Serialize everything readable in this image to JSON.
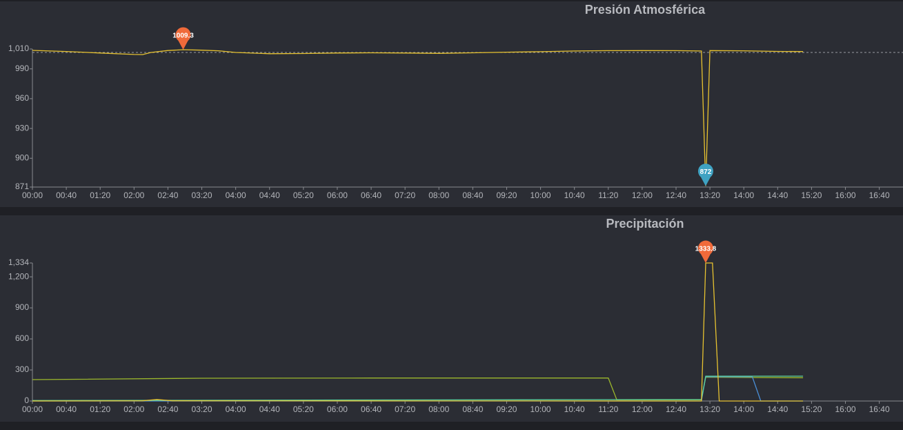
{
  "chart_data": [
    {
      "type": "line",
      "title": "Presión Atmosférica",
      "xlim": [
        0,
        1028
      ],
      "xticks": [
        {
          "value": 0,
          "label": "00:00"
        },
        {
          "value": 40,
          "label": "00:40"
        },
        {
          "value": 80,
          "label": "01:20"
        },
        {
          "value": 120,
          "label": "02:00"
        },
        {
          "value": 160,
          "label": "02:40"
        },
        {
          "value": 200,
          "label": "03:20"
        },
        {
          "value": 240,
          "label": "04:00"
        },
        {
          "value": 280,
          "label": "04:40"
        },
        {
          "value": 320,
          "label": "05:20"
        },
        {
          "value": 360,
          "label": "06:00"
        },
        {
          "value": 400,
          "label": "06:40"
        },
        {
          "value": 440,
          "label": "07:20"
        },
        {
          "value": 480,
          "label": "08:00"
        },
        {
          "value": 520,
          "label": "08:40"
        },
        {
          "value": 560,
          "label": "09:20"
        },
        {
          "value": 600,
          "label": "10:00"
        },
        {
          "value": 640,
          "label": "10:40"
        },
        {
          "value": 680,
          "label": "11:20"
        },
        {
          "value": 720,
          "label": "12:00"
        },
        {
          "value": 760,
          "label": "12:40"
        },
        {
          "value": 800,
          "label": "13:20"
        },
        {
          "value": 840,
          "label": "14:00"
        },
        {
          "value": 880,
          "label": "14:40"
        },
        {
          "value": 920,
          "label": "15:20"
        },
        {
          "value": 960,
          "label": "16:00"
        },
        {
          "value": 1000,
          "label": "16:40"
        }
      ],
      "ylim": [
        871,
        1010
      ],
      "yticks": [
        871,
        900,
        930,
        960,
        990,
        {
          "value": 1010,
          "label": "1,010"
        }
      ],
      "grid": false,
      "average_line": 1006.5,
      "series": [
        {
          "color": "#e8c330",
          "x": [
            0,
            40,
            80,
            120,
            130,
            140,
            160,
            178,
            200,
            220,
            240,
            280,
            320,
            360,
            400,
            440,
            480,
            520,
            560,
            600,
            640,
            680,
            720,
            760,
            790,
            795,
            800,
            840,
            880,
            910
          ],
          "values": [
            1008.6,
            1007.5,
            1006,
            1004.5,
            1004.4,
            1006.5,
            1008.5,
            1009.3,
            1008.8,
            1008.2,
            1006.5,
            1005.3,
            1005.5,
            1006,
            1006.2,
            1006,
            1005.6,
            1006.2,
            1006.8,
            1007.3,
            1008,
            1008.3,
            1008.4,
            1008.3,
            1008,
            872,
            1008.4,
            1008.2,
            1007.6,
            1007.4
          ]
        }
      ],
      "markers": [
        {
          "x": 178,
          "value": 1009.3,
          "color": "#f06a3a"
        },
        {
          "x": 795,
          "value": 872,
          "color": "#3fa2c2"
        }
      ]
    },
    {
      "type": "line",
      "title": "Precipitación",
      "xlim": [
        0,
        1028
      ],
      "xticks": [
        {
          "value": 0,
          "label": "00:00"
        },
        {
          "value": 40,
          "label": "00:40"
        },
        {
          "value": 80,
          "label": "01:20"
        },
        {
          "value": 120,
          "label": "02:00"
        },
        {
          "value": 160,
          "label": "02:40"
        },
        {
          "value": 200,
          "label": "03:20"
        },
        {
          "value": 240,
          "label": "04:00"
        },
        {
          "value": 280,
          "label": "04:40"
        },
        {
          "value": 320,
          "label": "05:20"
        },
        {
          "value": 360,
          "label": "06:00"
        },
        {
          "value": 400,
          "label": "06:40"
        },
        {
          "value": 440,
          "label": "07:20"
        },
        {
          "value": 480,
          "label": "08:00"
        },
        {
          "value": 520,
          "label": "08:40"
        },
        {
          "value": 560,
          "label": "09:20"
        },
        {
          "value": 600,
          "label": "10:00"
        },
        {
          "value": 640,
          "label": "10:40"
        },
        {
          "value": 680,
          "label": "11:20"
        },
        {
          "value": 720,
          "label": "12:00"
        },
        {
          "value": 760,
          "label": "12:40"
        },
        {
          "value": 800,
          "label": "13:20"
        },
        {
          "value": 840,
          "label": "14:00"
        },
        {
          "value": 880,
          "label": "14:40"
        },
        {
          "value": 920,
          "label": "15:20"
        },
        {
          "value": 960,
          "label": "16:00"
        },
        {
          "value": 1000,
          "label": "16:40"
        }
      ],
      "ylim": [
        0,
        1334
      ],
      "yticks": [
        0,
        300,
        600,
        900,
        {
          "value": 1200,
          "label": "1,200"
        },
        {
          "value": 1334,
          "label": "1,334"
        }
      ],
      "grid": false,
      "series": [
        {
          "color": "#9cb82c",
          "x": [
            0,
            200,
            400,
            680,
            690,
            790,
            795,
            910
          ],
          "values": [
            207,
            220,
            222,
            222,
            12,
            12,
            230,
            225
          ]
        },
        {
          "color": "#4a8fd8",
          "x": [
            0,
            790,
            795,
            850,
            860,
            910
          ],
          "values": [
            0,
            0,
            235,
            235,
            0,
            0
          ]
        },
        {
          "color": "#5cd39c",
          "x": [
            0,
            790,
            795,
            910
          ],
          "values": [
            5,
            15,
            240,
            240
          ]
        },
        {
          "color": "#e8c330",
          "x": [
            0,
            130,
            147,
            165,
            790,
            795,
            803,
            811,
            910
          ],
          "values": [
            0,
            2,
            15,
            2,
            0,
            1333.8,
            1333.8,
            0,
            0
          ]
        }
      ],
      "markers": [
        {
          "x": 795,
          "value": 1333.8,
          "color": "#f06a3a"
        }
      ]
    }
  ]
}
